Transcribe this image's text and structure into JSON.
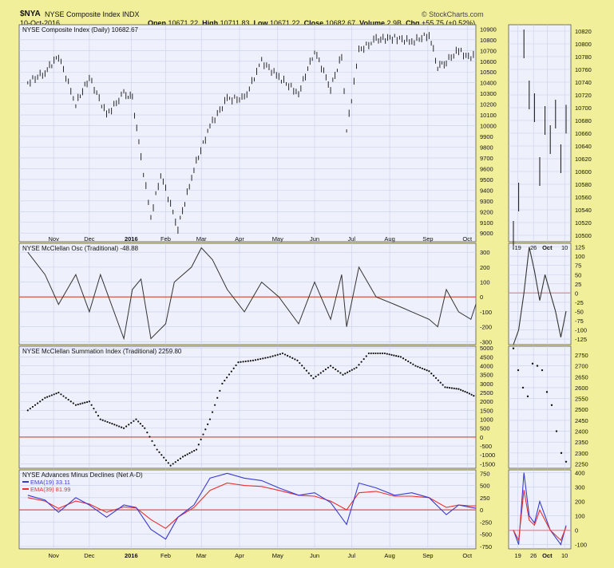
{
  "header": {
    "symbol": "$NYA",
    "name": "NYSE Composite Index  INDX",
    "date": "10-Oct-2016",
    "brand": "© StockCharts.com",
    "open_label": "Open",
    "open": "10671.22",
    "high_label": "High",
    "high": "10711.83",
    "low_label": "Low",
    "low": "10671.22",
    "close_label": "Close",
    "close": "10682.67",
    "volume_label": "Volume",
    "volume": "2.9B",
    "chg_label": "Chg",
    "chg": "+55.75 (+0.52%)"
  },
  "colors": {
    "frame_bg": "#f2ef9a",
    "panel_bg": "#eef1fb",
    "grid": "#c8cfe8",
    "price_bar": "#111111",
    "zero_line": "#d9534f",
    "ad_line": "#3a3ad0",
    "ema_fast": "#3a3ad0",
    "ema_slow": "#e83030"
  },
  "chart_data": [
    {
      "type": "line",
      "title": "NYSE Composite Index (Daily) 10682.67",
      "series": [
        {
          "name": "NYSE Composite Index",
          "x": [
            "2015-10-12",
            "2015-10-26",
            "2015-11-06",
            "2015-11-20",
            "2015-12-01",
            "2015-12-15",
            "2015-12-29",
            "2016-01-05",
            "2016-01-12",
            "2016-01-20",
            "2016-01-28",
            "2016-02-11",
            "2016-02-24",
            "2016-03-08",
            "2016-03-22",
            "2016-04-05",
            "2016-04-19",
            "2016-05-03",
            "2016-05-19",
            "2016-06-01",
            "2016-06-14",
            "2016-06-23",
            "2016-06-27",
            "2016-07-07",
            "2016-07-21",
            "2016-08-05",
            "2016-08-19",
            "2016-09-02",
            "2016-09-09",
            "2016-09-16",
            "2016-09-26",
            "2016-10-06",
            "2016-10-10"
          ],
          "values": [
            10400,
            10500,
            10650,
            10200,
            10450,
            10100,
            10300,
            10250,
            9700,
            9150,
            9550,
            9050,
            9600,
            10000,
            10250,
            10250,
            10600,
            10450,
            10300,
            10700,
            10350,
            10650,
            9950,
            10700,
            10800,
            10820,
            10780,
            10850,
            10550,
            10600,
            10700,
            10620,
            10680
          ]
        }
      ],
      "y_ticks": [
        9000,
        9100,
        9200,
        9300,
        9400,
        9500,
        9600,
        9700,
        9800,
        9900,
        10000,
        10100,
        10200,
        10300,
        10400,
        10500,
        10600,
        10700,
        10800,
        10900
      ],
      "ylim": [
        8920,
        10940
      ],
      "x_tick_labels": [
        "Nov",
        "Dec",
        "2016",
        "Feb",
        "Mar",
        "Apr",
        "May",
        "Jun",
        "Jul",
        "Aug",
        "Sep",
        "Oct"
      ]
    },
    {
      "type": "line",
      "title": "NYSE McClellan Osc (Traditional) -48.88",
      "series": [
        {
          "name": "NYSE McClellan Osc",
          "x": [
            "2015-10-12",
            "2015-10-26",
            "2015-11-06",
            "2015-11-20",
            "2015-12-01",
            "2015-12-10",
            "2015-12-29",
            "2016-01-05",
            "2016-01-12",
            "2016-01-20",
            "2016-02-01",
            "2016-02-08",
            "2016-02-22",
            "2016-03-01",
            "2016-03-10",
            "2016-03-22",
            "2016-04-05",
            "2016-04-19",
            "2016-05-03",
            "2016-05-19",
            "2016-06-01",
            "2016-06-14",
            "2016-06-23",
            "2016-06-27",
            "2016-07-07",
            "2016-07-21",
            "2016-08-05",
            "2016-08-19",
            "2016-09-02",
            "2016-09-09",
            "2016-09-16",
            "2016-09-26",
            "2016-10-06",
            "2016-10-10"
          ],
          "values": [
            300,
            150,
            -50,
            150,
            -100,
            150,
            -280,
            50,
            120,
            -280,
            -180,
            100,
            200,
            330,
            250,
            50,
            -100,
            100,
            0,
            -180,
            100,
            -150,
            150,
            -200,
            200,
            0,
            -50,
            -100,
            -150,
            -200,
            50,
            -100,
            -150,
            -49
          ]
        }
      ],
      "y_ticks": [
        -300,
        -200,
        -100,
        0,
        100,
        200,
        300
      ],
      "ylim": [
        -320,
        360
      ]
    },
    {
      "type": "scatter",
      "title": "NYSE McClellan Summation Index (Traditional) 2259.80",
      "series": [
        {
          "name": "NYSE McClellan Summation Index",
          "x": [
            "2015-10-12",
            "2015-10-26",
            "2015-11-06",
            "2015-11-20",
            "2015-12-01",
            "2015-12-10",
            "2015-12-29",
            "2016-01-08",
            "2016-01-15",
            "2016-01-25",
            "2016-02-05",
            "2016-02-15",
            "2016-02-26",
            "2016-03-08",
            "2016-03-18",
            "2016-03-31",
            "2016-04-12",
            "2016-04-26",
            "2016-05-06",
            "2016-05-18",
            "2016-05-31",
            "2016-06-14",
            "2016-06-24",
            "2016-07-05",
            "2016-07-15",
            "2016-07-28",
            "2016-08-10",
            "2016-08-22",
            "2016-09-02",
            "2016-09-15",
            "2016-09-26",
            "2016-10-03",
            "2016-10-10"
          ],
          "values": [
            1500,
            2200,
            2500,
            1800,
            2000,
            1000,
            500,
            1000,
            500,
            -700,
            -1600,
            -1100,
            -700,
            1000,
            3000,
            4200,
            4300,
            4500,
            4700,
            4300,
            3300,
            4000,
            3500,
            3900,
            4700,
            4700,
            4500,
            4000,
            3700,
            2800,
            2700,
            2500,
            2260
          ]
        }
      ],
      "y_ticks": [
        -1500,
        -1000,
        -500,
        0,
        500,
        1000,
        1500,
        2000,
        2500,
        3000,
        3500,
        4000,
        4500,
        5000
      ],
      "ylim": [
        -1750,
        5100
      ]
    },
    {
      "type": "line",
      "title": "NYSE Advances Minus Declines (Net A-D)",
      "legend": [
        "EMA(19) 33.11",
        "EMA(39) 81.99"
      ],
      "series": [
        {
          "name": "EMA(19) 33.11",
          "x": [
            "2015-10-12",
            "2015-10-26",
            "2015-11-06",
            "2015-11-20",
            "2015-12-01",
            "2015-12-15",
            "2015-12-29",
            "2016-01-08",
            "2016-01-20",
            "2016-02-01",
            "2016-02-11",
            "2016-02-24",
            "2016-03-08",
            "2016-03-22",
            "2016-04-05",
            "2016-04-19",
            "2016-05-03",
            "2016-05-19",
            "2016-06-01",
            "2016-06-14",
            "2016-06-27",
            "2016-07-07",
            "2016-07-21",
            "2016-08-05",
            "2016-08-19",
            "2016-09-02",
            "2016-09-16",
            "2016-09-26",
            "2016-10-06",
            "2016-10-10"
          ],
          "values": [
            300,
            200,
            -50,
            250,
            100,
            -150,
            100,
            50,
            -400,
            -600,
            -150,
            100,
            650,
            750,
            650,
            600,
            450,
            300,
            350,
            150,
            -300,
            550,
            450,
            300,
            350,
            250,
            -100,
            100,
            50,
            33
          ]
        },
        {
          "name": "EMA(39) 81.99",
          "x": [
            "2015-10-12",
            "2015-10-26",
            "2015-11-06",
            "2015-11-20",
            "2015-12-01",
            "2015-12-15",
            "2015-12-29",
            "2016-01-08",
            "2016-01-20",
            "2016-02-01",
            "2016-02-11",
            "2016-02-24",
            "2016-03-08",
            "2016-03-22",
            "2016-04-05",
            "2016-04-19",
            "2016-05-03",
            "2016-05-19",
            "2016-06-01",
            "2016-06-14",
            "2016-06-27",
            "2016-07-07",
            "2016-07-21",
            "2016-08-05",
            "2016-08-19",
            "2016-09-02",
            "2016-09-16",
            "2016-09-26",
            "2016-10-06",
            "2016-10-10"
          ],
          "values": [
            250,
            180,
            30,
            180,
            120,
            -50,
            60,
            40,
            -200,
            -380,
            -150,
            50,
            400,
            550,
            500,
            480,
            400,
            300,
            280,
            180,
            0,
            350,
            380,
            280,
            280,
            250,
            50,
            100,
            80,
            82
          ]
        }
      ],
      "y_ticks": [
        -750,
        -500,
        -250,
        0,
        250,
        500,
        750
      ],
      "ylim": [
        -800,
        820
      ],
      "x_tick_labels": [
        "Nov",
        "Dec",
        "2016",
        "Feb",
        "Mar",
        "Apr",
        "May",
        "Jun",
        "Jul",
        "Aug",
        "Sep",
        "Oct"
      ]
    }
  ],
  "zoom": {
    "price_ticks": [
      10500,
      10520,
      10540,
      10560,
      10580,
      10600,
      10620,
      10640,
      10660,
      10680,
      10700,
      10720,
      10740,
      10760,
      10780,
      10800,
      10820
    ],
    "price_ylim": [
      10490,
      10830
    ],
    "price_values": [
      10500,
      10560,
      10800,
      10720,
      10700,
      10600,
      10680,
      10650,
      10690,
      10620,
      10682
    ],
    "osc_ticks": [
      -125,
      -100,
      -75,
      -50,
      -25,
      0,
      25,
      50,
      75,
      100,
      125
    ],
    "osc_ylim": [
      -140,
      135
    ],
    "osc_values": [
      -140,
      -100,
      0,
      125,
      60,
      -20,
      50,
      0,
      -50,
      -120,
      -49
    ],
    "sum_ticks": [
      2250,
      2300,
      2350,
      2400,
      2450,
      2500,
      2550,
      2600,
      2650,
      2700,
      2750
    ],
    "sum_ylim": [
      2230,
      2790
    ],
    "sum_values": [
      2780,
      2680,
      2600,
      2560,
      2710,
      2700,
      2680,
      2580,
      2520,
      2400,
      2300,
      2260
    ],
    "ad_ticks": [
      -100,
      0,
      100,
      200,
      300,
      400
    ],
    "ad_ylim": [
      -130,
      420
    ],
    "ad_values": [
      0,
      -100,
      400,
      100,
      50,
      200,
      100,
      0,
      -50,
      -100,
      33
    ],
    "x_tick_labels": [
      "19",
      "26",
      "Oct",
      "10"
    ]
  }
}
